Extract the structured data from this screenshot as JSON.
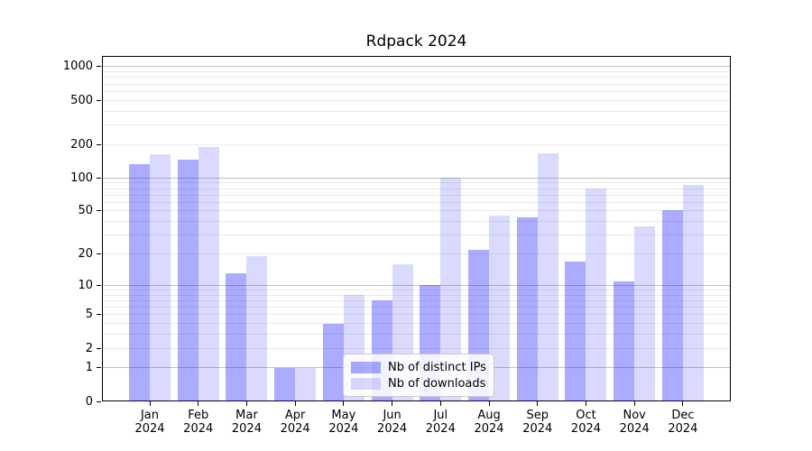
{
  "figure": {
    "title": "Rdpack 2024",
    "background_color": "#ffffff",
    "plot_border_color": "#000000"
  },
  "chart_data": {
    "type": "bar",
    "title": "Rdpack 2024",
    "xlabel": "",
    "ylabel": "",
    "y_scale": "log1p",
    "ylim": [
      0,
      1280
    ],
    "grid": true,
    "legend_position": "inside-bottom-center",
    "categories": [
      "Jan",
      "Feb",
      "Mar",
      "Apr",
      "May",
      "Jun",
      "Jul",
      "Aug",
      "Sep",
      "Oct",
      "Nov",
      "Dec"
    ],
    "year_label": "2024",
    "series": [
      {
        "name": "Nb of distinct IPs",
        "color": "rgba(0,0,255,0.33)",
        "values": [
          133,
          146,
          13,
          1,
          4,
          7,
          10,
          22,
          44,
          17,
          11,
          51
        ]
      },
      {
        "name": "Nb of downloads",
        "color": "rgba(0,0,255,0.145)",
        "values": [
          164,
          191,
          19,
          1,
          8,
          16,
          100,
          45,
          166,
          80,
          36,
          87
        ]
      }
    ],
    "y_ticks": [
      0,
      1,
      2,
      5,
      10,
      20,
      50,
      100,
      200,
      500,
      1000
    ],
    "grid_major_values": [
      1,
      10,
      100,
      1000
    ],
    "grid_minor_values": [
      2,
      3,
      4,
      5,
      6,
      7,
      8,
      9,
      20,
      30,
      40,
      50,
      60,
      70,
      80,
      90,
      200,
      300,
      400,
      500,
      600,
      700,
      800,
      900
    ],
    "grid_major_color": "#c3c3c3",
    "grid_minor_color": "#ebebeb"
  }
}
